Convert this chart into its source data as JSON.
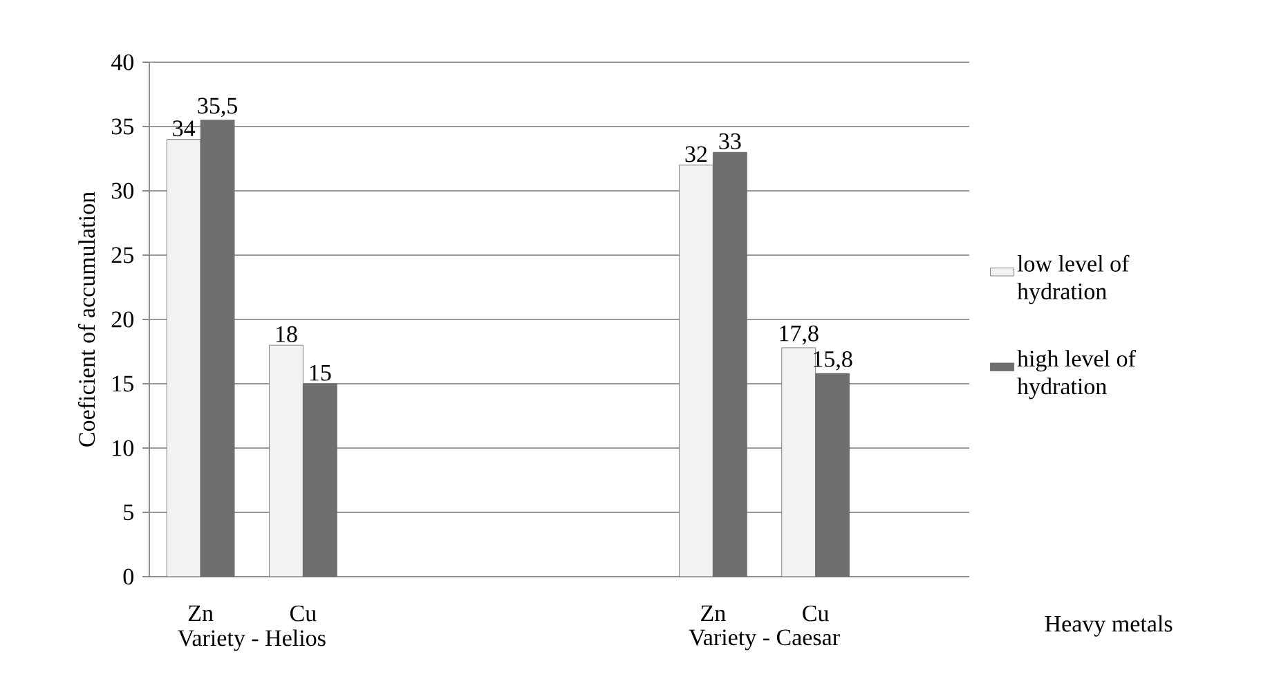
{
  "chart_data": {
    "type": "bar",
    "ylabel": "Coeficient of accumulation",
    "xlabel": "Heavy metals",
    "categories": [
      "Zn",
      "Cu",
      null,
      null,
      null,
      "Zn",
      "Cu",
      null
    ],
    "series": [
      {
        "name": "low level of hydration",
        "color": "#f2f2f2",
        "values": [
          34,
          18,
          null,
          null,
          null,
          32,
          17.8,
          null
        ],
        "value_labels": [
          "34",
          "18",
          null,
          null,
          null,
          "32",
          "17,8",
          null
        ]
      },
      {
        "name": "high level of hydration",
        "color": "#6f6f6f",
        "values": [
          35.5,
          15,
          null,
          null,
          null,
          33,
          15.8,
          null
        ],
        "value_labels": [
          "35,5",
          "15",
          null,
          null,
          null,
          "33",
          "15,8",
          null
        ]
      }
    ],
    "ylim": [
      0,
      40
    ],
    "yticks": [
      0,
      5,
      10,
      15,
      20,
      25,
      30,
      35,
      40
    ],
    "grid": "y",
    "legend": "right",
    "annotations": [
      "Variety - Helios",
      "Variety - Caesar"
    ]
  }
}
